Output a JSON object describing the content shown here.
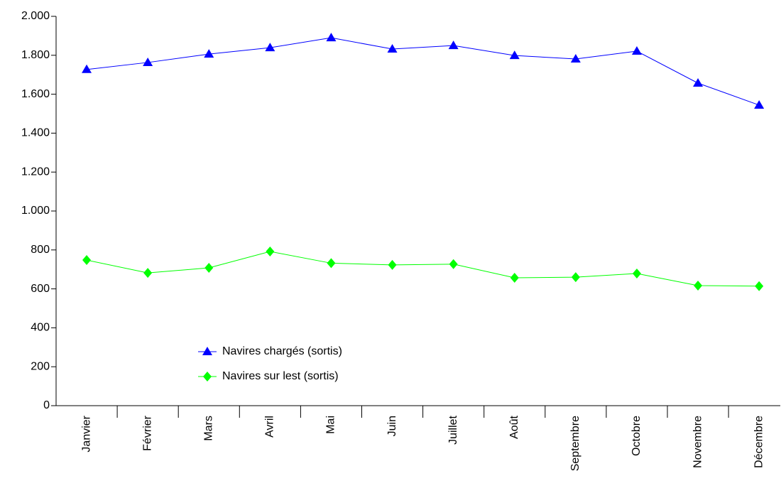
{
  "chart_data": {
    "type": "line",
    "categories": [
      "Janvier",
      "Février",
      "Mars",
      "Avril",
      "Mai",
      "Juin",
      "Juillet",
      "Août",
      "Septembre",
      "Octobre",
      "Novembre",
      "Décembre"
    ],
    "series": [
      {
        "name": "Navires chargés (sortis)",
        "color": "#0000ff",
        "marker": "triangle",
        "values": [
          1727,
          1763,
          1806,
          1839,
          1890,
          1832,
          1850,
          1799,
          1781,
          1821,
          1657,
          1544
        ]
      },
      {
        "name": "Navires sur lest (sortis)",
        "color": "#00ff00",
        "marker": "diamond",
        "values": [
          748,
          682,
          708,
          792,
          732,
          723,
          727,
          657,
          660,
          679,
          617,
          614
        ]
      }
    ],
    "ylim": [
      0,
      2000
    ],
    "yticks": [
      0,
      200,
      400,
      600,
      800,
      {
        "value": 1000,
        "label": "1.000"
      },
      {
        "value": 1200,
        "label": "1.200"
      },
      {
        "value": 1400,
        "label": "1.400"
      },
      {
        "value": 1600,
        "label": "1.600"
      },
      {
        "value": 1800,
        "label": "1.800"
      },
      {
        "value": 2000,
        "label": "2.000"
      }
    ],
    "grid": false
  }
}
